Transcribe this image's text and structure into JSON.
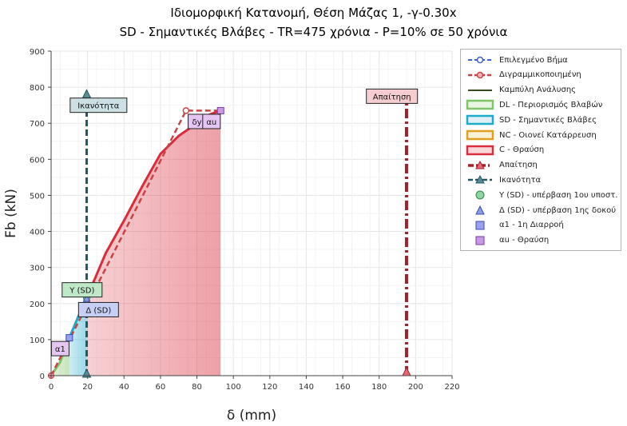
{
  "title": "Ιδιομορφική Κατανομή, Θέση Μάζας 1, -γ-0.30x",
  "subtitle": "SD - Σημαντικές Βλάβες - TR=475 χρόνια - P=10% σε 50 χρόνια",
  "colors": {
    "dl": "#7fc46a",
    "sd": "#1eaacb",
    "nc": "#e0a020",
    "c": "#d92c3c",
    "curve": "#3a4a20",
    "demand": "#a3202c",
    "capacity": "#1f5a66",
    "selected": "#3f5fd0",
    "bilinear": "#c84444"
  },
  "legend": [
    {
      "label": "Επιλεγμένο Βήμα",
      "icon": "dashed-line-circle-marker"
    },
    {
      "label": "Διγραμμικοποιημένη",
      "icon": "dashed-line-circle-marker"
    },
    {
      "label": "Καμπύλη Ανάλυσης",
      "icon": "solid-line"
    },
    {
      "label": "DL - Περιορισμός Βλαβών",
      "icon": "area-swatch"
    },
    {
      "label": "SD - Σημαντικές Βλάβες",
      "icon": "area-swatch"
    },
    {
      "label": "NC - Οιονεί Κατάρρευση",
      "icon": "area-swatch"
    },
    {
      "label": "C - Θραύση",
      "icon": "area-swatch"
    },
    {
      "label": "Απαίτηση",
      "icon": "dashdot-line-triangle"
    },
    {
      "label": "Ικανότητα",
      "icon": "dashed-line-triangle"
    },
    {
      "label": "Y (SD) - υπέρβαση 1ου υποστ.",
      "icon": "circle-marker"
    },
    {
      "label": "Δ (SD) - υπέρβαση 1ης δοκού",
      "icon": "triangle-marker"
    },
    {
      "label": "α1 - 1η Διαρροή",
      "icon": "square-marker"
    },
    {
      "label": "αu - Θραύση",
      "icon": "square-marker"
    }
  ],
  "chart_data": {
    "type": "area",
    "title": "Ιδιομορφική Κατανομή, Θέση Μάζας 1, -γ-0.30x",
    "subtitle": "SD - Σημαντικές Βλάβες - TR=475 χρόνια - P=10% σε 50 χρόνια",
    "xlabel": "δ (mm)",
    "ylabel": "Fb (kN)",
    "xlim": [
      0,
      220
    ],
    "ylim": [
      0,
      900
    ],
    "xticks": [
      0,
      20,
      40,
      60,
      80,
      100,
      120,
      140,
      160,
      180,
      200,
      220
    ],
    "yticks": [
      0,
      100,
      200,
      300,
      400,
      500,
      600,
      700,
      800,
      900
    ],
    "grid": true,
    "legend_position": "right",
    "capacity_curve": {
      "x": [
        0,
        5,
        10,
        15,
        19.5,
        22,
        30,
        40,
        50,
        60,
        70,
        80,
        85,
        90,
        93
      ],
      "y": [
        0,
        38,
        105,
        165,
        215,
        245,
        340,
        430,
        525,
        615,
        665,
        700,
        720,
        730,
        735
      ]
    },
    "bilinear": {
      "x": [
        0,
        74,
        93
      ],
      "y": [
        0,
        735,
        735
      ]
    },
    "selected_step": {
      "x": [
        0,
        93
      ],
      "y": [
        0,
        735
      ]
    },
    "zones": [
      {
        "name": "DL - Περιορισμός Βλαβών",
        "x_start": 0,
        "x_end": 10
      },
      {
        "name": "SD - Σημαντικές Βλάβες",
        "x_start": 10,
        "x_end": 19.5
      },
      {
        "name": "C - Θραύση",
        "x_start": 19.5,
        "x_end": 93
      }
    ],
    "demand": {
      "name": "Απαίτηση",
      "x": 195,
      "y_max": 770
    },
    "capacity": {
      "name": "Ικανότητα",
      "x": 19.5,
      "y_max": 775
    },
    "points": [
      {
        "name": "Y (SD)",
        "x": 19.5,
        "y": 215,
        "marker": "circle"
      },
      {
        "name": "Δ (SD)",
        "x": 19.5,
        "y": 215,
        "marker": "triangle"
      },
      {
        "name": "α1",
        "x": 10,
        "y": 105,
        "marker": "square"
      },
      {
        "name": "αu",
        "x": 93,
        "y": 735,
        "marker": "square"
      }
    ],
    "annotations": [
      {
        "text": "Ικανότητα",
        "x": 26,
        "y": 750
      },
      {
        "text": "Απαίτηση",
        "x": 187,
        "y": 775
      },
      {
        "text": "Y (SD)",
        "x": 17,
        "y": 238
      },
      {
        "text": "Δ (SD)",
        "x": 26,
        "y": 183
      },
      {
        "text": "α1",
        "x": 5,
        "y": 75
      },
      {
        "text": "δy",
        "x": 80,
        "y": 705
      },
      {
        "text": "αu",
        "x": 88,
        "y": 705
      }
    ]
  }
}
